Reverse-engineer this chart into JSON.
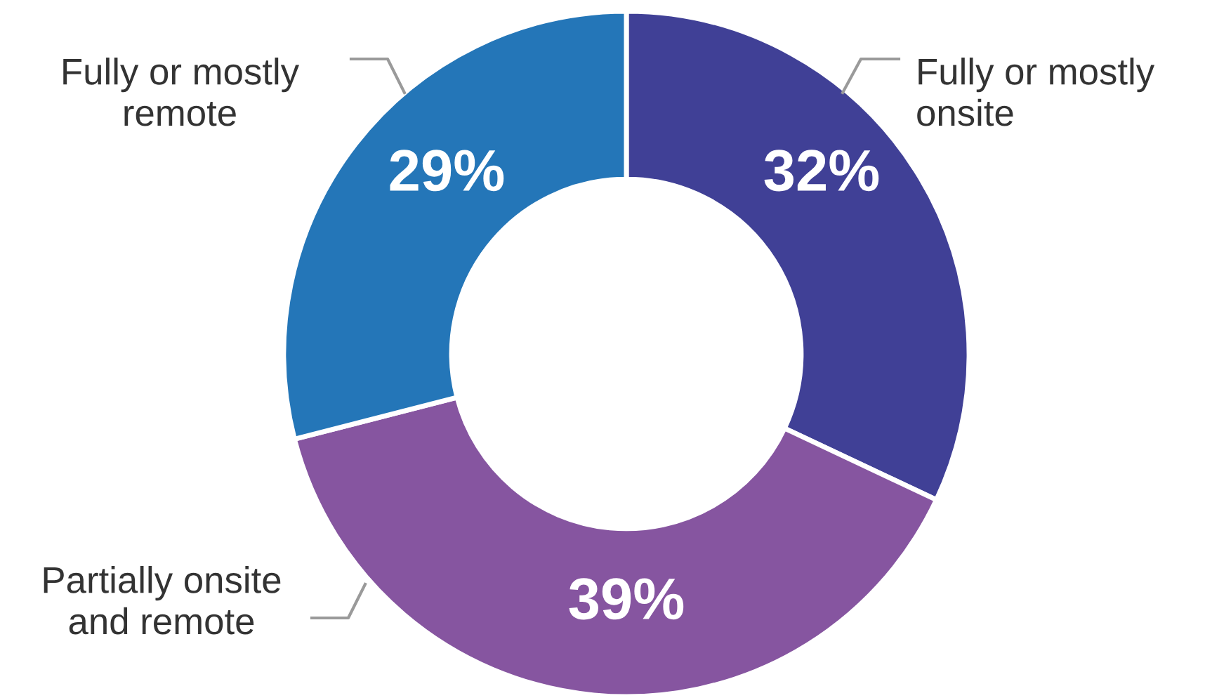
{
  "chart_data": {
    "type": "donut",
    "categories": [
      "Fully or mostly\nonsite",
      "Partially onsite\nand remote",
      "Fully or mostly\nremote"
    ],
    "values": [
      32,
      39,
      29
    ],
    "colors": [
      "#404096",
      "#8655a0",
      "#2476b8"
    ],
    "value_labels": [
      "32%",
      "39%",
      "29%"
    ]
  }
}
